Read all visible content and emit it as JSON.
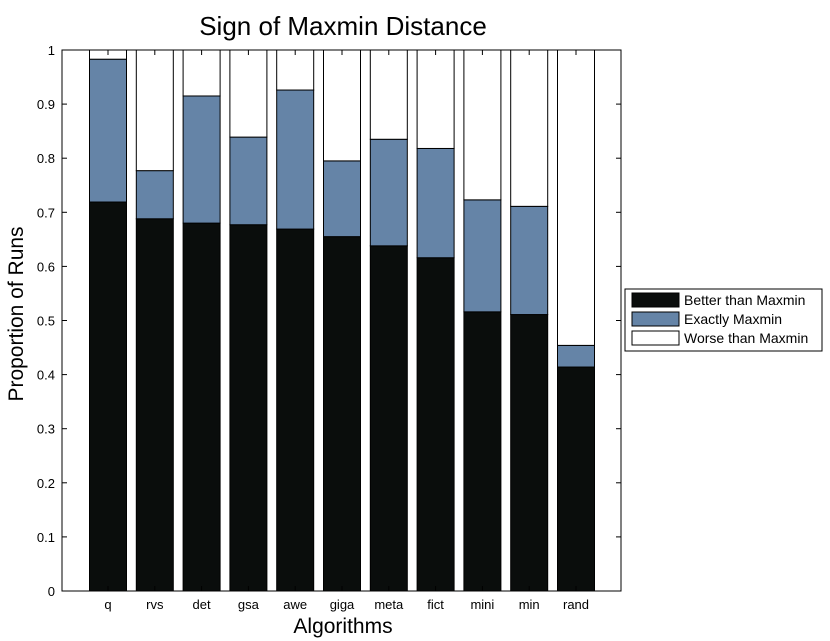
{
  "chart_data": {
    "type": "bar",
    "stacked": true,
    "title": "Sign of Maxmin Distance",
    "xlabel": "Algorithms",
    "ylabel": "Proportion of Runs",
    "ylim": [
      0,
      1
    ],
    "yticks": [
      "0",
      "0.1",
      "0.2",
      "0.3",
      "0.4",
      "0.5",
      "0.6",
      "0.7",
      "0.8",
      "0.9",
      "1"
    ],
    "categories": [
      "q",
      "rvs",
      "det",
      "gsa",
      "awe",
      "giga",
      "meta",
      "fict",
      "mini",
      "min",
      "rand"
    ],
    "series": [
      {
        "name": "Better than Maxmin",
        "color": "#0a0d0c",
        "values": [
          0.719,
          0.688,
          0.68,
          0.677,
          0.669,
          0.655,
          0.638,
          0.616,
          0.516,
          0.511,
          0.414
        ]
      },
      {
        "name": "Exactly Maxmin",
        "color": "#6584a7",
        "values": [
          0.264,
          0.089,
          0.235,
          0.162,
          0.257,
          0.14,
          0.197,
          0.202,
          0.207,
          0.2,
          0.04
        ]
      },
      {
        "name": "Worse than Maxmin",
        "color": "#ffffff",
        "values": [
          0.017,
          0.223,
          0.085,
          0.161,
          0.074,
          0.205,
          0.165,
          0.182,
          0.277,
          0.289,
          0.546
        ]
      }
    ],
    "legend": "right"
  }
}
